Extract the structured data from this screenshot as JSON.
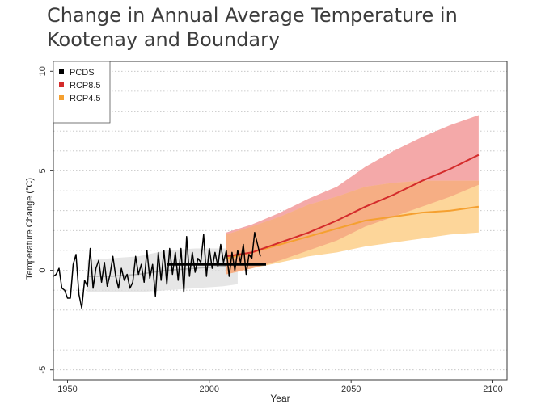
{
  "page": {
    "title_line1": "Change in Annual Average Temperature in",
    "title_line2": "Kootenay and Boundary"
  },
  "colors": {
    "pcds": "#000000",
    "rcp85_line": "#d42b2b",
    "rcp85_band": "#f4a9a9",
    "rcp45_line": "#f5a030",
    "rcp45_band": "#fdd69a",
    "overlap_band": "#f6ae84",
    "historical_band": "#dcdcdc",
    "historical_line": "#b4b4b4",
    "grid": "#bfbfbf"
  },
  "chart_data": {
    "type": "line",
    "xlabel": "Year",
    "ylabel": "Temperature Change (°C)",
    "xlim": [
      1945,
      2105
    ],
    "ylim": [
      -5.5,
      10.5
    ],
    "x_ticks": [
      1950,
      2000,
      2050,
      2100
    ],
    "y_ticks": [
      -5,
      0,
      5,
      10
    ],
    "grid": "horizontal dotted",
    "legend": {
      "position": "top-left",
      "entries": [
        {
          "label": "PCDS",
          "color": "#000000"
        },
        {
          "label": "RCP8.5",
          "color": "#d42b2b"
        },
        {
          "label": "RCP4.5",
          "color": "#f5a030"
        }
      ]
    },
    "observed_pcds": {
      "name": "PCDS",
      "x": [
        1945,
        1946,
        1947,
        1948,
        1949,
        1950,
        1951,
        1952,
        1953,
        1954,
        1955,
        1956,
        1957,
        1958,
        1959,
        1960,
        1961,
        1962,
        1963,
        1964,
        1965,
        1966,
        1967,
        1968,
        1969,
        1970,
        1971,
        1972,
        1973,
        1974,
        1975,
        1976,
        1977,
        1978,
        1979,
        1980,
        1981,
        1982,
        1983,
        1984,
        1985,
        1986,
        1987,
        1988,
        1989,
        1990,
        1991,
        1992,
        1993,
        1994,
        1995,
        1996,
        1997,
        1998,
        1999,
        2000,
        2001,
        2002,
        2003,
        2004,
        2005,
        2006,
        2007,
        2008,
        2009,
        2010,
        2011,
        2012,
        2013,
        2014,
        2015,
        2016,
        2017,
        2018
      ],
      "y": [
        -0.3,
        -0.2,
        0.1,
        -0.9,
        -1.0,
        -1.4,
        -1.4,
        0.3,
        0.8,
        -1.2,
        -1.9,
        -0.5,
        -0.8,
        1.1,
        -0.9,
        0.1,
        0.5,
        -0.6,
        0.4,
        -0.8,
        -0.2,
        0.7,
        -0.3,
        -0.9,
        0.1,
        -0.5,
        -0.2,
        -0.9,
        -0.6,
        0.7,
        -0.2,
        0.3,
        -0.6,
        1.0,
        -0.4,
        0.3,
        -1.3,
        0.9,
        -0.5,
        1.0,
        -0.7,
        1.1,
        -0.2,
        0.9,
        -0.5,
        1.1,
        -1.1,
        1.7,
        -0.3,
        0.9,
        -0.1,
        0.6,
        0.4,
        1.8,
        -0.3,
        1.1,
        0.1,
        0.9,
        0.2,
        1.3,
        0.4,
        1.0,
        -0.3,
        0.9,
        0.0,
        1.0,
        0.4,
        1.3,
        -0.2,
        0.8,
        0.6,
        1.9,
        1.3,
        0.7
      ]
    },
    "baseline": {
      "x": [
        1985,
        2020
      ],
      "y": [
        0.3,
        0.3
      ]
    },
    "historical_band": {
      "x": [
        1957,
        1965,
        1975,
        1985,
        1995,
        2005,
        2010
      ],
      "upper": [
        0.5,
        0.6,
        0.7,
        1.0,
        1.1,
        1.1,
        1.1
      ],
      "lower": [
        -1.1,
        -1.1,
        -1.1,
        -1.0,
        -0.9,
        -0.8,
        -0.7
      ]
    },
    "historical_mean": {
      "x": [
        1957,
        1965,
        1975,
        1985,
        1995,
        2005,
        2010
      ],
      "y": [
        -0.3,
        -0.3,
        -0.2,
        0.0,
        0.1,
        0.2,
        0.3
      ]
    },
    "series": [
      {
        "name": "RCP8.5",
        "x": [
          2006,
          2015,
          2025,
          2035,
          2045,
          2055,
          2065,
          2075,
          2085,
          2095
        ],
        "mean": [
          0.7,
          0.9,
          1.4,
          1.9,
          2.5,
          3.2,
          3.8,
          4.5,
          5.1,
          5.8
        ],
        "upper": [
          1.9,
          2.3,
          2.9,
          3.6,
          4.2,
          5.2,
          6.0,
          6.7,
          7.3,
          7.8
        ],
        "lower": [
          -0.2,
          0.1,
          0.5,
          1.0,
          1.5,
          2.2,
          2.7,
          3.2,
          3.7,
          4.3
        ]
      },
      {
        "name": "RCP4.5",
        "x": [
          2006,
          2015,
          2025,
          2035,
          2045,
          2055,
          2065,
          2075,
          2085,
          2095
        ],
        "mean": [
          0.6,
          0.9,
          1.3,
          1.7,
          2.1,
          2.5,
          2.7,
          2.9,
          3.0,
          3.2
        ],
        "upper": [
          1.8,
          2.2,
          2.7,
          3.3,
          3.7,
          4.2,
          4.4,
          4.5,
          4.5,
          4.5
        ],
        "lower": [
          -0.2,
          0.1,
          0.4,
          0.7,
          0.9,
          1.2,
          1.4,
          1.6,
          1.8,
          1.9
        ]
      }
    ]
  }
}
